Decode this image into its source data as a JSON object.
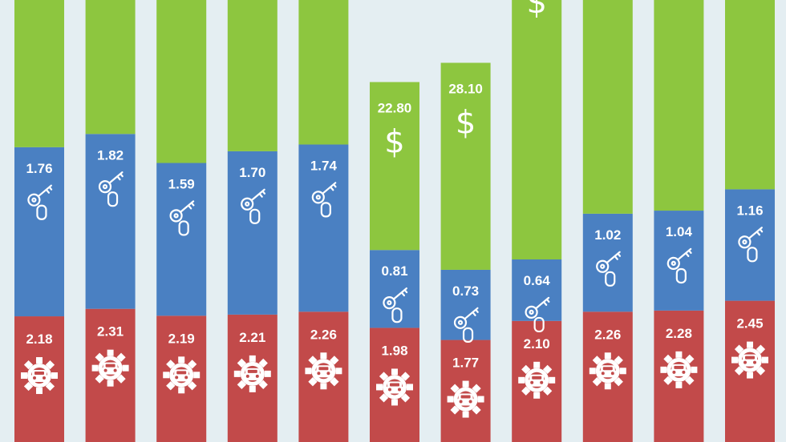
{
  "chart_data": {
    "type": "bar",
    "stacked": true,
    "categories": [
      "",
      "",
      "",
      "",
      "",
      "",
      "",
      "",
      "",
      "",
      ""
    ],
    "series": [
      {
        "color": "#c24a4a",
        "icon": "gear-car-icon",
        "values": [
          2.18,
          2.31,
          2.19,
          2.21,
          2.26,
          1.98,
          1.77,
          2.1,
          2.26,
          2.28,
          2.45
        ],
        "labels": [
          "2.18",
          "2.31",
          "2.19",
          "2.21",
          "2.26",
          "1.98",
          "1.77",
          "2.10",
          "2.26",
          "2.28",
          "2.45"
        ]
      },
      {
        "color": "#4a80c2",
        "icon": "car-key-icon",
        "values": [
          1.76,
          1.82,
          1.59,
          1.7,
          1.74,
          0.81,
          0.73,
          0.64,
          1.02,
          1.04,
          1.16
        ],
        "labels": [
          "1.76",
          "1.82",
          "1.59",
          "1.70",
          "1.74",
          "0.81",
          "0.73",
          "0.64",
          "1.02",
          "1.04",
          "1.16"
        ]
      },
      {
        "color": "#8dc63f",
        "icon": "dollar-icon",
        "values": [
          null,
          null,
          null,
          null,
          null,
          22.8,
          28.1,
          null,
          null,
          null,
          null
        ],
        "labels": [
          "",
          "",
          "",
          "",
          "",
          "22.80",
          "28.10",
          "",
          "",
          "",
          ""
        ]
      }
    ],
    "legend": "none",
    "grid": false
  }
}
